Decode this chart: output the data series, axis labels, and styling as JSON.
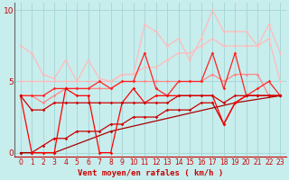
{
  "background_color": "#c8eded",
  "grid_color": "#a8d8d8",
  "xlabel": "Vent moyen/en rafales ( km/h )",
  "xlabel_color": "#cc0000",
  "ylim": [
    -0.3,
    10.5
  ],
  "xlim": [
    -0.5,
    23.5
  ],
  "yticks": [
    0,
    5,
    10
  ],
  "xticks": [
    0,
    1,
    2,
    3,
    4,
    5,
    6,
    7,
    8,
    9,
    10,
    11,
    12,
    13,
    14,
    15,
    16,
    17,
    18,
    19,
    20,
    21,
    22,
    23
  ],
  "series": [
    {
      "x": [
        0,
        1,
        2,
        3,
        4,
        5,
        6,
        7,
        8,
        9,
        10,
        11,
        12,
        13,
        14,
        15,
        16,
        17,
        18,
        19,
        20,
        21,
        22,
        23
      ],
      "y": [
        7.5,
        7.0,
        5.5,
        5.2,
        6.5,
        5.0,
        6.5,
        5.2,
        5.0,
        5.5,
        5.5,
        9.0,
        8.5,
        7.5,
        8.0,
        6.5,
        8.0,
        10.0,
        8.5,
        8.5,
        8.5,
        7.5,
        9.0,
        7.0
      ],
      "color": "#ffbbbb",
      "lw": 0.9,
      "marker": "D",
      "ms": 1.8,
      "zorder": 2
    },
    {
      "x": [
        0,
        1,
        2,
        3,
        4,
        5,
        6,
        7,
        8,
        9,
        10,
        11,
        12,
        13,
        14,
        15,
        16,
        17,
        18,
        19,
        20,
        21,
        22,
        23
      ],
      "y": [
        5.0,
        5.0,
        5.0,
        5.0,
        5.0,
        5.0,
        5.0,
        5.0,
        5.0,
        5.5,
        5.5,
        6.0,
        6.0,
        6.5,
        7.0,
        7.0,
        7.5,
        8.0,
        7.5,
        7.5,
        7.5,
        7.5,
        8.0,
        5.0
      ],
      "color": "#ffbbbb",
      "lw": 0.9,
      "marker": "D",
      "ms": 1.8,
      "zorder": 2
    },
    {
      "x": [
        0,
        1,
        2,
        3,
        4,
        5,
        6,
        7,
        8,
        9,
        10,
        11,
        12,
        13,
        14,
        15,
        16,
        17,
        18,
        19,
        20,
        21,
        22,
        23
      ],
      "y": [
        4.0,
        4.0,
        3.5,
        4.0,
        4.5,
        4.5,
        4.5,
        4.5,
        4.5,
        5.0,
        5.0,
        5.0,
        5.0,
        5.0,
        5.0,
        5.0,
        5.0,
        5.5,
        5.0,
        5.5,
        5.5,
        5.5,
        4.0,
        4.0
      ],
      "color": "#ff8888",
      "lw": 0.9,
      "marker": "D",
      "ms": 1.8,
      "zorder": 3
    },
    {
      "x": [
        0,
        1,
        2,
        3,
        4,
        5,
        6,
        7,
        8,
        9,
        10,
        11,
        12,
        13,
        14,
        15,
        16,
        17,
        18,
        19,
        20,
        21,
        22,
        23
      ],
      "y": [
        4.0,
        4.0,
        4.0,
        4.5,
        4.5,
        4.5,
        4.5,
        5.0,
        4.5,
        5.0,
        5.0,
        7.0,
        4.5,
        4.0,
        5.0,
        5.0,
        5.0,
        7.0,
        4.5,
        7.0,
        4.0,
        4.5,
        5.0,
        4.0
      ],
      "color": "#ff2222",
      "lw": 0.9,
      "marker": "D",
      "ms": 1.8,
      "zorder": 4
    },
    {
      "x": [
        0,
        1,
        2,
        3,
        4,
        5,
        6,
        7,
        8,
        9,
        10,
        11,
        12,
        13,
        14,
        15,
        16,
        17,
        18,
        19,
        20,
        21,
        22,
        23
      ],
      "y": [
        4.0,
        3.0,
        3.0,
        3.5,
        3.5,
        3.5,
        3.5,
        3.5,
        3.5,
        3.5,
        3.5,
        3.5,
        3.5,
        3.5,
        4.0,
        4.0,
        4.0,
        4.0,
        3.5,
        4.0,
        4.0,
        4.0,
        4.0,
        4.0
      ],
      "color": "#cc0000",
      "lw": 0.9,
      "marker": "D",
      "ms": 1.8,
      "zorder": 5
    },
    {
      "x": [
        0,
        1,
        2,
        3,
        4,
        5,
        6,
        7,
        8,
        9,
        10,
        11,
        12,
        13,
        14,
        15,
        16,
        17,
        18,
        19,
        20,
        21,
        22,
        23
      ],
      "y": [
        4.0,
        0.0,
        0.0,
        0.0,
        4.5,
        4.0,
        4.0,
        0.0,
        0.0,
        3.5,
        4.5,
        3.5,
        4.0,
        4.0,
        4.0,
        4.0,
        4.0,
        4.0,
        2.0,
        3.5,
        4.0,
        4.0,
        4.0,
        4.0
      ],
      "color": "#ff0000",
      "lw": 0.9,
      "marker": "D",
      "ms": 1.8,
      "zorder": 4
    },
    {
      "x": [
        0,
        1,
        2,
        3,
        4,
        5,
        6,
        7,
        8,
        9,
        10,
        11,
        12,
        13,
        14,
        15,
        16,
        17,
        18,
        19,
        20,
        21,
        22,
        23
      ],
      "y": [
        0.0,
        0.0,
        0.5,
        1.0,
        1.0,
        1.5,
        1.5,
        1.5,
        2.0,
        2.0,
        2.5,
        2.5,
        2.5,
        3.0,
        3.0,
        3.0,
        3.5,
        3.5,
        2.0,
        3.5,
        4.0,
        4.0,
        4.0,
        4.0
      ],
      "color": "#cc0000",
      "lw": 0.9,
      "marker": "D",
      "ms": 1.8,
      "zorder": 3
    },
    {
      "x": [
        0,
        3,
        8,
        19,
        23
      ],
      "y": [
        0.0,
        0.0,
        1.5,
        3.5,
        4.0
      ],
      "color": "#aa0000",
      "lw": 0.9,
      "marker": "D",
      "ms": 1.8,
      "zorder": 3
    }
  ],
  "tick_fontsize": 5.5,
  "xlabel_fontsize": 6.5
}
